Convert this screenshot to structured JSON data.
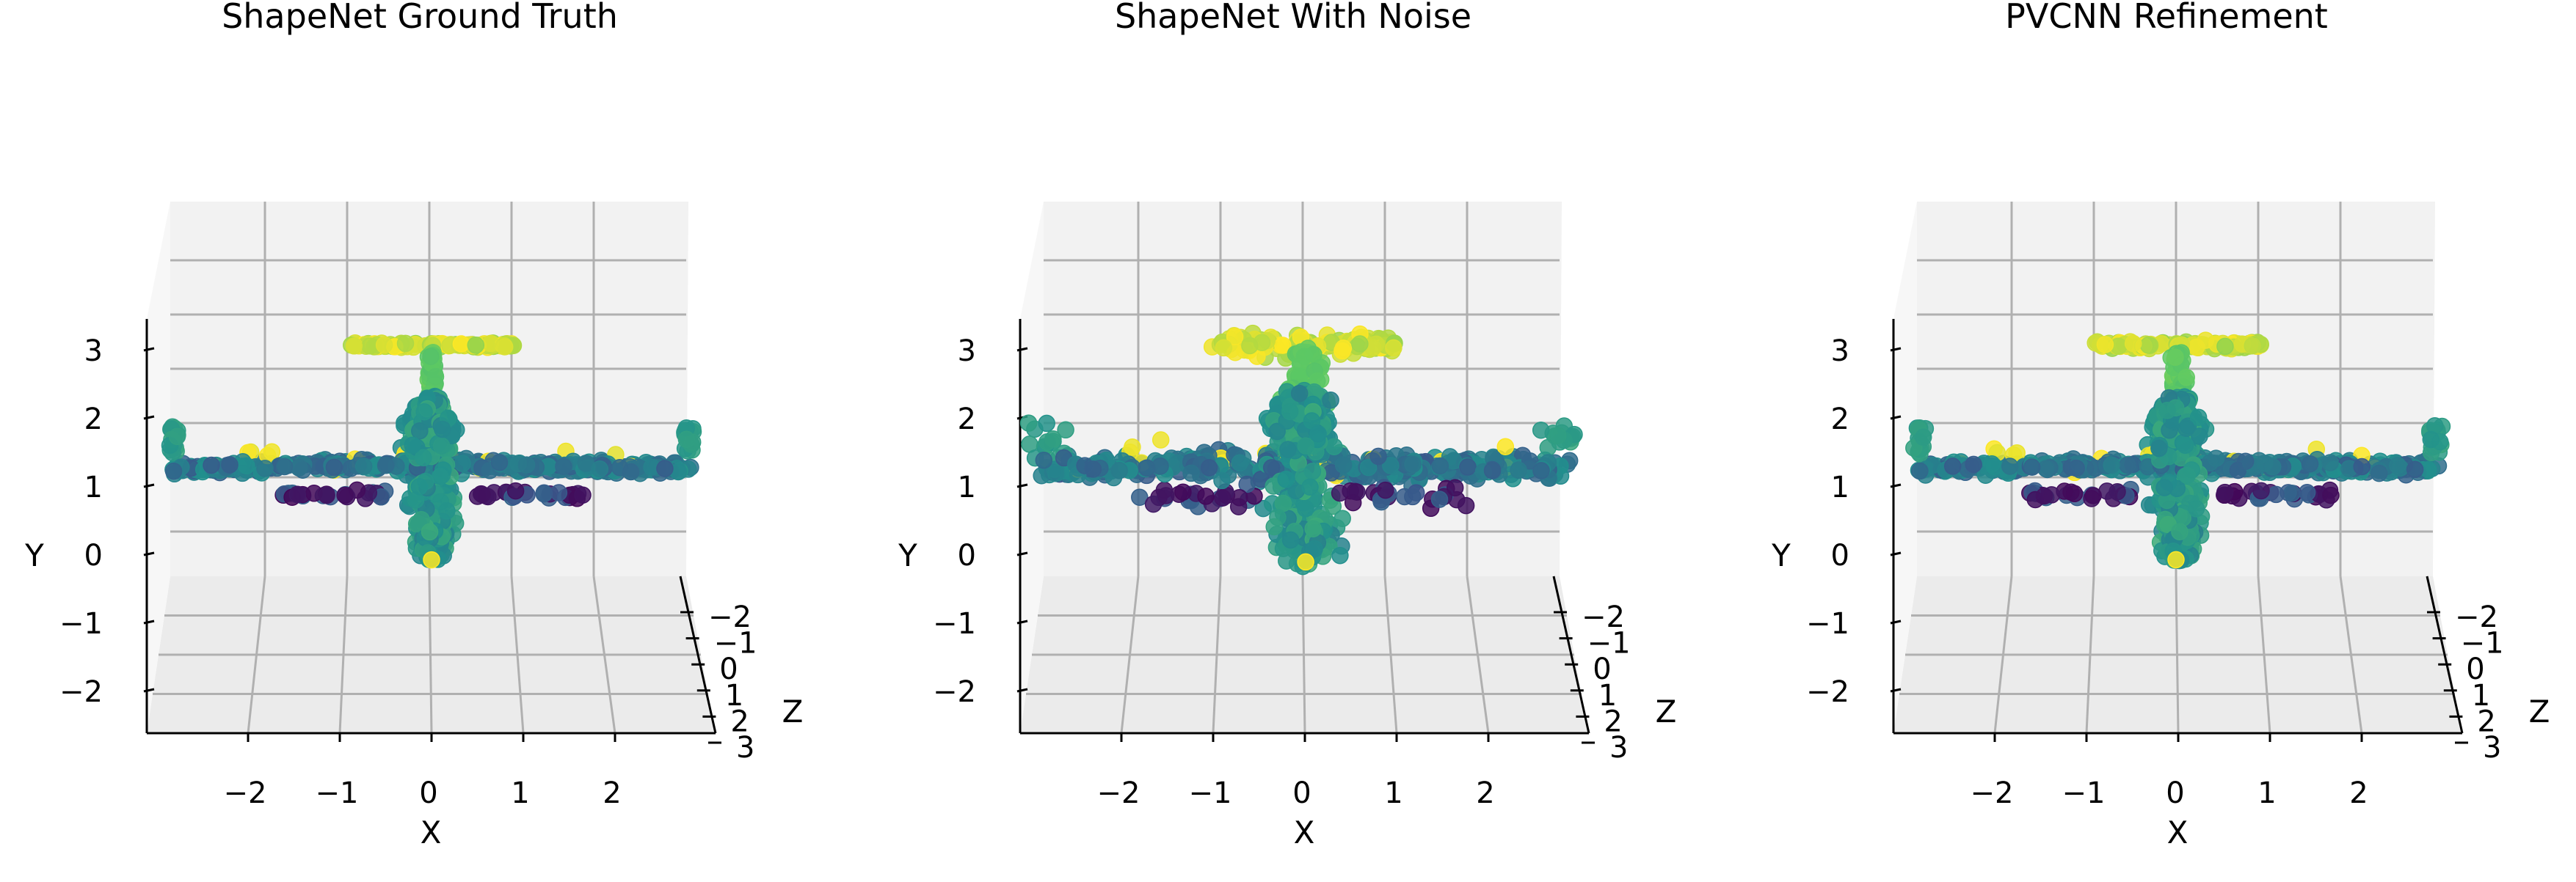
{
  "chart_data": [
    {
      "type": "scatter",
      "projection": "3d",
      "title": "ShapeNet Ground Truth",
      "xlabel": "X",
      "ylabel": "Y",
      "zlabel": "Z",
      "xlim": [
        -3,
        3
      ],
      "ylim": [
        -2.5,
        3.5
      ],
      "zlim": [
        -3,
        3
      ],
      "xticks": [
        "−2",
        "−1",
        "0",
        "1",
        "2"
      ],
      "yticks": [
        "−2",
        "−1",
        "0",
        "1",
        "2",
        "3"
      ],
      "zticks": [
        "−2",
        "−1",
        "0",
        "1",
        "2",
        "3"
      ],
      "grid": true,
      "colormap": "viridis",
      "noise": 0.0
    },
    {
      "type": "scatter",
      "projection": "3d",
      "title": "ShapeNet With Noise",
      "xlabel": "X",
      "ylabel": "Y",
      "zlabel": "Z",
      "xlim": [
        -3,
        3
      ],
      "ylim": [
        -2.5,
        3.5
      ],
      "zlim": [
        -3,
        3
      ],
      "xticks": [
        "−2",
        "−1",
        "0",
        "1",
        "2"
      ],
      "yticks": [
        "−2",
        "−1",
        "0",
        "1",
        "2",
        "3"
      ],
      "zticks": [
        "−2",
        "−1",
        "0",
        "1",
        "2",
        "3"
      ],
      "grid": true,
      "colormap": "viridis",
      "noise": 0.06
    },
    {
      "type": "scatter",
      "projection": "3d",
      "title": "PVCNN Refinement",
      "xlabel": "X",
      "ylabel": "Y",
      "zlabel": "Z",
      "xlim": [
        -3,
        3
      ],
      "ylim": [
        -2.5,
        3.5
      ],
      "zlim": [
        -3,
        3
      ],
      "xticks": [
        "−2",
        "−1",
        "0",
        "1",
        "2"
      ],
      "yticks": [
        "−2",
        "−1",
        "0",
        "1",
        "2",
        "3"
      ],
      "zticks": [
        "−2",
        "−1",
        "0",
        "1",
        "2",
        "3"
      ],
      "grid": true,
      "colormap": "viridis",
      "noise": 0.015
    }
  ],
  "colors": {
    "pane": "#f2f2f2",
    "grid": "#b0b0b0",
    "axis": "#000000",
    "viridis": [
      "#440154",
      "#3b528b",
      "#21908d",
      "#5dc963",
      "#fde725"
    ]
  }
}
